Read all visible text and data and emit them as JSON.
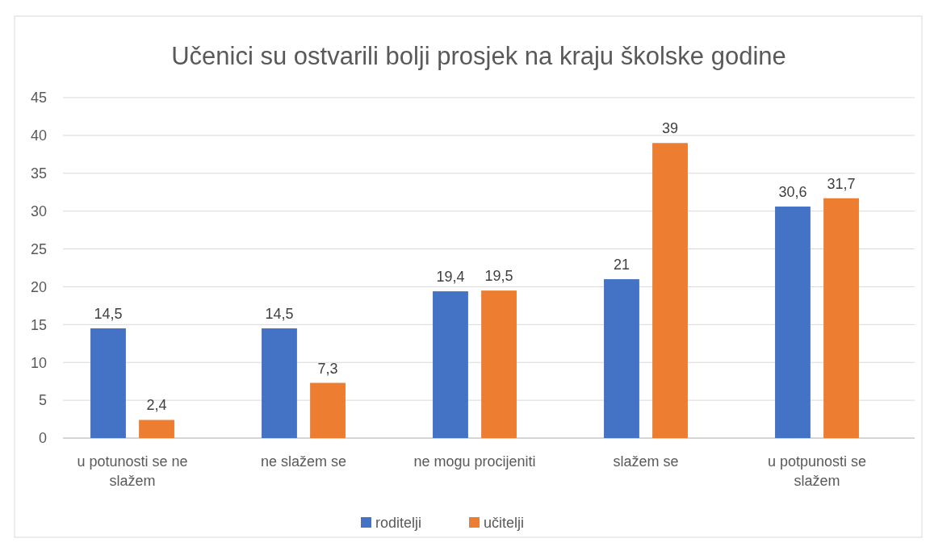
{
  "chart_data": {
    "type": "bar",
    "title": "Učenici su ostvarili bolji prosjek na kraju školske godine",
    "categories": [
      "u potunosti se ne slažem",
      "ne slažem se",
      "ne mogu procijeniti",
      "slažem se",
      "u potpunosti se slažem"
    ],
    "series": [
      {
        "name": "roditelji",
        "color": "#4472c4",
        "values": [
          14.5,
          14.5,
          19.4,
          21,
          30.6
        ],
        "value_labels": [
          "14,5",
          "14,5",
          "19,4",
          "21",
          "30,6"
        ]
      },
      {
        "name": "učitelji",
        "color": "#ed7d31",
        "values": [
          2.4,
          7.3,
          19.5,
          39,
          31.7
        ],
        "value_labels": [
          "2,4",
          "7,3",
          "19,5",
          "39",
          "31,7"
        ]
      }
    ],
    "ylim": [
      0,
      45
    ],
    "yticks": [
      0,
      5,
      10,
      15,
      20,
      25,
      30,
      35,
      40,
      45
    ],
    "grid": "y",
    "legend": "bottom"
  }
}
